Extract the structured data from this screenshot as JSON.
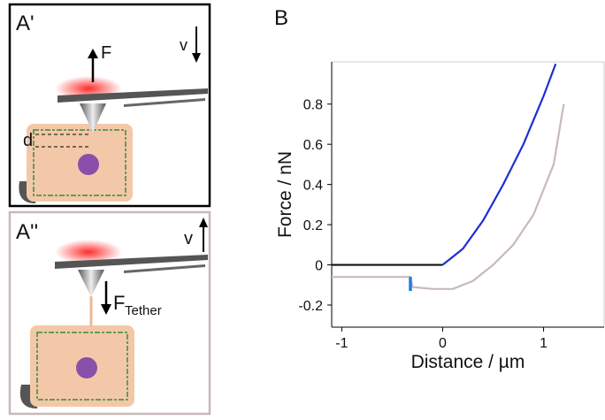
{
  "panels": [
    {
      "label": "A'",
      "force": "F",
      "velocity": "v",
      "distance": "d"
    },
    {
      "label": "A''",
      "velocity": "v",
      "force": "F",
      "force_subscript": "Tether"
    }
  ],
  "chart_data": {
    "type": "line",
    "label": "B",
    "x_label": "Distance / µm",
    "y_label": "Force / nN",
    "xlim": [
      -1.1,
      1.6
    ],
    "ylim": [
      -0.31,
      1.01
    ],
    "xticks": [
      -1,
      0,
      1
    ],
    "yticks": [
      -0.2,
      0,
      0.2,
      0.4,
      0.6,
      0.8
    ],
    "series": [
      {
        "color": "#111111",
        "x": [
          -1.1,
          -0.8,
          -0.5,
          -0.2,
          0
        ],
        "values": [
          0,
          0,
          0,
          0,
          0
        ]
      },
      {
        "color": "#1a2fd6",
        "x": [
          0,
          0.2,
          0.4,
          0.6,
          0.8,
          1.0,
          1.12
        ],
        "values": [
          0,
          0.08,
          0.22,
          0.4,
          0.6,
          0.84,
          1.0
        ]
      },
      {
        "color": "#c9b9b9",
        "x": [
          -1.1,
          -0.8,
          -0.5,
          -0.32,
          -0.3,
          -0.1,
          0.1,
          0.3,
          0.5,
          0.7,
          0.9,
          1.1,
          1.2
        ],
        "values": [
          -0.06,
          -0.06,
          -0.06,
          -0.06,
          -0.11,
          -0.12,
          -0.12,
          -0.08,
          0,
          0.1,
          0.25,
          0.5,
          0.8
        ]
      },
      {
        "color": "#1e7fe0",
        "x": [
          -0.32,
          -0.32
        ],
        "values": [
          -0.06,
          -0.13
        ]
      }
    ]
  }
}
